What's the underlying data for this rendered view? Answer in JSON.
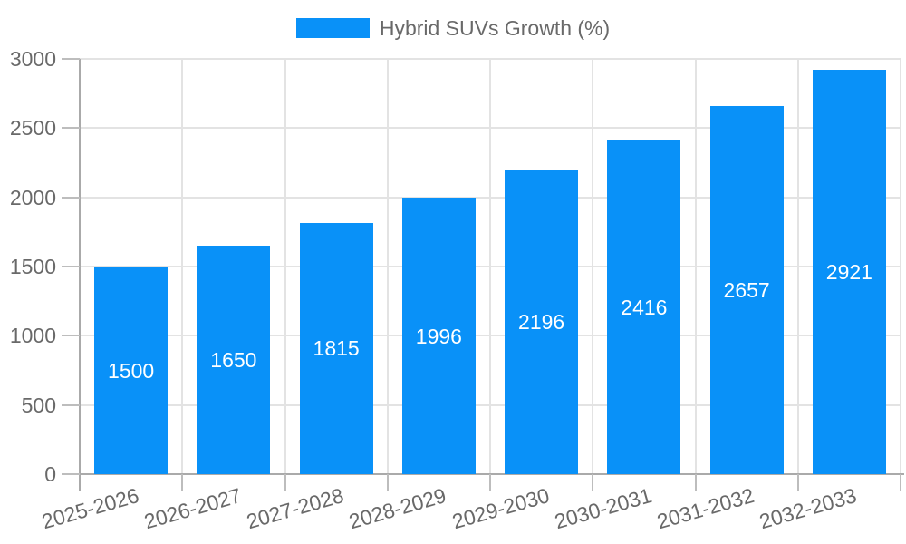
{
  "chart_data": {
    "type": "bar",
    "title": "",
    "legend": "Hybrid SUVs Growth (%)",
    "legend_position": "top-center",
    "categories": [
      "2025-2026",
      "2026-2027",
      "2027-2028",
      "2028-2029",
      "2029-2030",
      "2030-2031",
      "2031-2032",
      "2032-2033"
    ],
    "values": [
      1500,
      1650,
      1815,
      1996,
      2196,
      2416,
      2657,
      2921
    ],
    "value_labels_inside_bars": true,
    "xlabel": "",
    "ylabel": "",
    "ylim": [
      0,
      3000
    ],
    "ytick_step": 500,
    "yticks": [
      0,
      500,
      1000,
      1500,
      2000,
      2500,
      3000
    ],
    "grid": true,
    "colors": {
      "bar_fill": "#0991f8",
      "bar_value_text": "#ffffff",
      "gridline": "#e3e3e3",
      "axis_line": "#aaaaaa",
      "tick_mark": "#bdbdbd",
      "tick_label_text": "#696969",
      "legend_text": "#696969",
      "background": "#ffffff"
    }
  }
}
